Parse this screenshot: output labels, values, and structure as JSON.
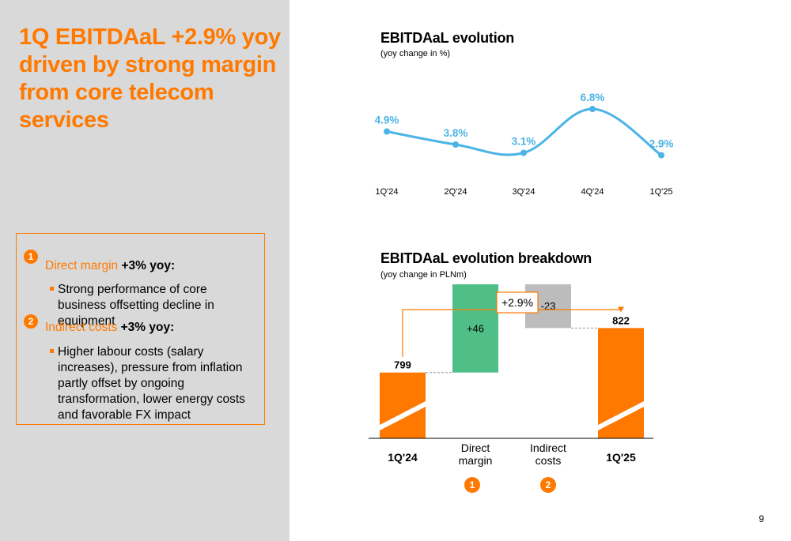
{
  "headline": "1Q EBITDAaL +2.9% yoy driven by strong margin from core telecom services",
  "commentary": {
    "items": [
      {
        "badge": "1",
        "name": "Direct margin",
        "change": "+3% yoy:",
        "bullet": "Strong performance of core business offsetting decline in equipment"
      },
      {
        "badge": "2",
        "name": "Indirect costs",
        "change": "+3% yoy:",
        "bullet": "Higher labour costs (salary increases), pressure from inflation partly offset by ongoing transformation, lower energy costs and favorable FX impact"
      }
    ]
  },
  "colors": {
    "brand_orange": "#ff7900",
    "line_blue": "#4bb4e6",
    "positive_green": "#50be87",
    "negative_grey": "#bcbcbc",
    "panel_grey": "#d9d9d9"
  },
  "chart_data": [
    {
      "type": "line",
      "title": "EBITDAaL evolution",
      "subtitle": "(yoy change in %)",
      "categories": [
        "1Q'24",
        "2Q'24",
        "3Q'24",
        "4Q'24",
        "1Q'25"
      ],
      "values": [
        4.9,
        3.8,
        3.1,
        6.8,
        2.9
      ],
      "labels": [
        "4.9%",
        "3.8%",
        "3.1%",
        "6.8%",
        "2.9%"
      ],
      "ylim": [
        0,
        8
      ],
      "grid": false,
      "color": "#4bb4e6"
    },
    {
      "type": "bar",
      "subtype": "waterfall",
      "title": "EBITDAaL evolution breakdown",
      "subtitle": "(yoy change in PLNm)",
      "categories": [
        "1Q'24",
        "Direct margin",
        "Indirect costs",
        "1Q'25"
      ],
      "category_lines": [
        [
          "1Q'24"
        ],
        [
          "Direct",
          "margin"
        ],
        [
          "Indirect",
          "costs"
        ],
        [
          "1Q'25"
        ]
      ],
      "category_badges": [
        "",
        "1",
        "2",
        ""
      ],
      "values": [
        799,
        46,
        -23,
        822
      ],
      "labels": [
        "799",
        "+46",
        "-23",
        "822"
      ],
      "kinds": [
        "total",
        "delta",
        "delta",
        "total"
      ],
      "bar_colors": [
        "#ff7900",
        "#50be87",
        "#bcbcbc",
        "#ff7900"
      ],
      "annotation": "+2.9%",
      "axis_break": true
    }
  ],
  "page_number": "9"
}
